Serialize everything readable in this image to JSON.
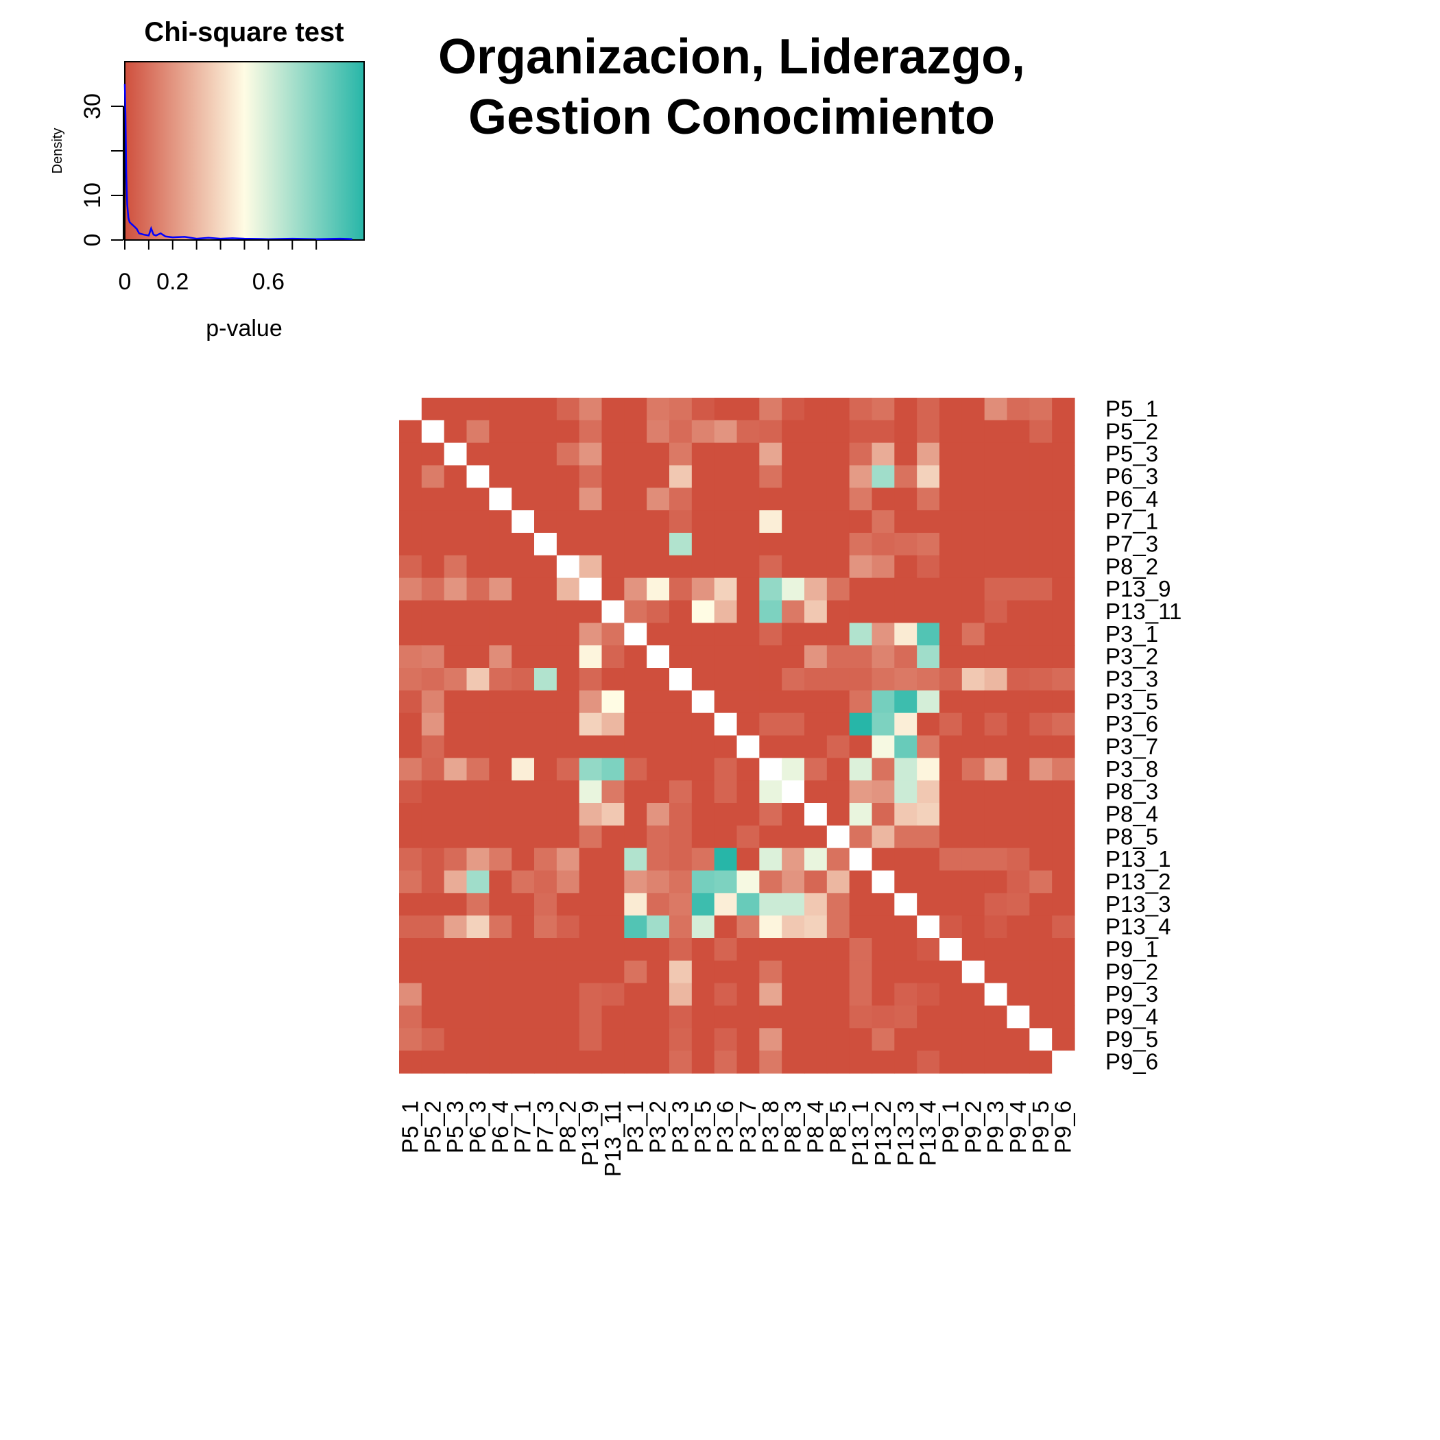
{
  "chart_data": [
    {
      "type": "heatmap",
      "title_lines": [
        "Organizacion, Liderazgo,",
        "Gestion Conocimiento"
      ],
      "row_labels": [
        "P5_1",
        "P5_2",
        "P5_3",
        "P6_3",
        "P6_4",
        "P7_1",
        "P7_3",
        "P8_2",
        "P13_9",
        "P13_11",
        "P3_1",
        "P3_2",
        "P3_3",
        "P3_5",
        "P3_6",
        "P3_7",
        "P3_8",
        "P8_3",
        "P8_4",
        "P8_5",
        "P13_1",
        "P13_2",
        "P13_3",
        "P13_4",
        "P9_1",
        "P9_2",
        "P9_3",
        "P9_4",
        "P9_5",
        "P9_6"
      ],
      "col_labels": [
        "P5_1",
        "P5_2",
        "P5_3",
        "P6_3",
        "P6_4",
        "P7_1",
        "P7_3",
        "P8_2",
        "P13_9",
        "P13_11",
        "P3_1",
        "P3_2",
        "P3_3",
        "P3_5",
        "P3_6",
        "P3_7",
        "P3_8",
        "P8_3",
        "P8_4",
        "P8_5",
        "P13_1",
        "P13_2",
        "P13_3",
        "P13_4",
        "P9_1",
        "P9_2",
        "P9_3",
        "P9_4",
        "P9_5",
        "P9_6"
      ],
      "value_meaning": "p-value (Chi-square test)",
      "color_scale": {
        "low": "#cf4f3d",
        "mid": "#fffce4",
        "high": "#27b6a8",
        "range": [
          0,
          1
        ]
      },
      "notes": "Symmetric matrix with blank diagonal; unlisted pairs have p-value ~0. Rows/cols are ordered as in row_labels/col_labels.",
      "default_value": 0.0,
      "cells": [
        [
          "P5_1",
          "P8_2",
          0.06
        ],
        [
          "P5_1",
          "P13_9",
          0.15
        ],
        [
          "P5_1",
          "P3_2",
          0.12
        ],
        [
          "P5_1",
          "P3_3",
          0.1
        ],
        [
          "P5_1",
          "P3_5",
          0.03
        ],
        [
          "P5_1",
          "P3_8",
          0.13
        ],
        [
          "P5_1",
          "P8_3",
          0.03
        ],
        [
          "P5_1",
          "P13_1",
          0.07
        ],
        [
          "P5_1",
          "P13_2",
          0.1
        ],
        [
          "P5_1",
          "P13_4",
          0.06
        ],
        [
          "P5_1",
          "P9_3",
          0.18
        ],
        [
          "P5_1",
          "P9_4",
          0.08
        ],
        [
          "P5_1",
          "P9_5",
          0.1
        ],
        [
          "P5_2",
          "P6_3",
          0.13
        ],
        [
          "P5_2",
          "P13_9",
          0.09
        ],
        [
          "P5_2",
          "P3_2",
          0.14
        ],
        [
          "P5_2",
          "P3_3",
          0.08
        ],
        [
          "P5_2",
          "P3_5",
          0.15
        ],
        [
          "P5_2",
          "P3_6",
          0.2
        ],
        [
          "P5_2",
          "P3_7",
          0.07
        ],
        [
          "P5_2",
          "P3_8",
          0.06
        ],
        [
          "P5_2",
          "P13_1",
          0.03
        ],
        [
          "P5_2",
          "P13_4",
          0.06
        ],
        [
          "P5_2",
          "P9_5",
          0.06
        ],
        [
          "P5_3",
          "P8_2",
          0.1
        ],
        [
          "P5_3",
          "P13_9",
          0.2
        ],
        [
          "P5_3",
          "P3_3",
          0.12
        ],
        [
          "P5_3",
          "P3_8",
          0.25
        ],
        [
          "P5_3",
          "P13_1",
          0.08
        ],
        [
          "P5_3",
          "P13_2",
          0.27
        ],
        [
          "P5_3",
          "P13_4",
          0.24
        ],
        [
          "P6_3",
          "P13_9",
          0.08
        ],
        [
          "P6_3",
          "P3_3",
          0.35
        ],
        [
          "P6_3",
          "P3_8",
          0.1
        ],
        [
          "P6_3",
          "P13_1",
          0.22
        ],
        [
          "P6_3",
          "P13_2",
          0.72
        ],
        [
          "P6_3",
          "P13_3",
          0.1
        ],
        [
          "P6_3",
          "P13_4",
          0.38
        ],
        [
          "P6_4",
          "P13_9",
          0.2
        ],
        [
          "P6_4",
          "P3_2",
          0.18
        ],
        [
          "P6_4",
          "P3_3",
          0.08
        ],
        [
          "P6_4",
          "P13_1",
          0.12
        ],
        [
          "P6_4",
          "P13_4",
          0.1
        ],
        [
          "P7_1",
          "P3_3",
          0.06
        ],
        [
          "P7_1",
          "P3_8",
          0.46
        ],
        [
          "P7_1",
          "P13_2",
          0.1
        ],
        [
          "P7_3",
          "P3_3",
          0.68
        ],
        [
          "P7_3",
          "P13_1",
          0.1
        ],
        [
          "P7_3",
          "P13_2",
          0.07
        ],
        [
          "P7_3",
          "P13_3",
          0.08
        ],
        [
          "P7_3",
          "P13_4",
          0.1
        ],
        [
          "P8_2",
          "P13_9",
          0.3
        ],
        [
          "P8_2",
          "P3_8",
          0.07
        ],
        [
          "P8_2",
          "P13_1",
          0.2
        ],
        [
          "P8_2",
          "P13_2",
          0.15
        ],
        [
          "P8_2",
          "P13_4",
          0.05
        ],
        [
          "P13_9",
          "P3_1",
          0.2
        ],
        [
          "P13_9",
          "P3_2",
          0.48
        ],
        [
          "P13_9",
          "P3_3",
          0.07
        ],
        [
          "P13_9",
          "P3_5",
          0.2
        ],
        [
          "P13_9",
          "P3_6",
          0.38
        ],
        [
          "P13_9",
          "P3_8",
          0.75
        ],
        [
          "P13_9",
          "P8_3",
          0.55
        ],
        [
          "P13_9",
          "P8_4",
          0.28
        ],
        [
          "P13_9",
          "P8_5",
          0.1
        ],
        [
          "P13_9",
          "P9_3",
          0.06
        ],
        [
          "P13_9",
          "P9_4",
          0.06
        ],
        [
          "P13_9",
          "P9_5",
          0.06
        ],
        [
          "P13_11",
          "P3_1",
          0.1
        ],
        [
          "P13_11",
          "P3_2",
          0.06
        ],
        [
          "P13_11",
          "P3_5",
          0.5
        ],
        [
          "P13_11",
          "P3_6",
          0.3
        ],
        [
          "P13_11",
          "P3_8",
          0.8
        ],
        [
          "P13_11",
          "P8_3",
          0.12
        ],
        [
          "P13_11",
          "P8_4",
          0.35
        ],
        [
          "P13_11",
          "P9_3",
          0.05
        ],
        [
          "P3_1",
          "P3_8",
          0.06
        ],
        [
          "P3_1",
          "P13_1",
          0.68
        ],
        [
          "P3_1",
          "P13_2",
          0.2
        ],
        [
          "P3_1",
          "P13_3",
          0.45
        ],
        [
          "P3_1",
          "P13_4",
          0.9
        ],
        [
          "P3_1",
          "P9_2",
          0.1
        ],
        [
          "P3_2",
          "P8_4",
          0.2
        ],
        [
          "P3_2",
          "P8_5",
          0.08
        ],
        [
          "P3_2",
          "P13_1",
          0.08
        ],
        [
          "P3_2",
          "P13_2",
          0.15
        ],
        [
          "P3_2",
          "P13_3",
          0.08
        ],
        [
          "P3_2",
          "P13_4",
          0.72
        ],
        [
          "P3_3",
          "P8_3",
          0.08
        ],
        [
          "P3_3",
          "P8_4",
          0.06
        ],
        [
          "P3_3",
          "P8_5",
          0.06
        ],
        [
          "P3_3",
          "P13_1",
          0.06
        ],
        [
          "P3_3",
          "P13_2",
          0.1
        ],
        [
          "P3_3",
          "P13_3",
          0.12
        ],
        [
          "P3_3",
          "P13_4",
          0.1
        ],
        [
          "P3_3",
          "P9_1",
          0.06
        ],
        [
          "P3_3",
          "P9_2",
          0.35
        ],
        [
          "P3_3",
          "P9_3",
          0.3
        ],
        [
          "P3_3",
          "P9_4",
          0.05
        ],
        [
          "P3_3",
          "P9_5",
          0.06
        ],
        [
          "P3_3",
          "P9_6",
          0.08
        ],
        [
          "P3_5",
          "P13_1",
          0.1
        ],
        [
          "P3_5",
          "P13_2",
          0.82
        ],
        [
          "P3_5",
          "P13_3",
          0.95
        ],
        [
          "P3_5",
          "P13_4",
          0.6
        ],
        [
          "P3_6",
          "P8_3",
          0.06
        ],
        [
          "P3_6",
          "P13_1",
          1.0
        ],
        [
          "P3_6",
          "P13_2",
          0.8
        ],
        [
          "P3_6",
          "P13_3",
          0.46
        ],
        [
          "P3_6",
          "P9_1",
          0.06
        ],
        [
          "P3_6",
          "P9_3",
          0.05
        ],
        [
          "P3_6",
          "P9_5",
          0.05
        ],
        [
          "P3_6",
          "P9_6",
          0.08
        ],
        [
          "P3_7",
          "P8_5",
          0.06
        ],
        [
          "P3_7",
          "P13_2",
          0.52
        ],
        [
          "P3_7",
          "P13_3",
          0.85
        ],
        [
          "P3_7",
          "P13_4",
          0.12
        ],
        [
          "P3_8",
          "P8_3",
          0.55
        ],
        [
          "P3_8",
          "P8_4",
          0.08
        ],
        [
          "P3_8",
          "P13_1",
          0.58
        ],
        [
          "P3_8",
          "P13_2",
          0.1
        ],
        [
          "P3_8",
          "P13_3",
          0.62
        ],
        [
          "P3_8",
          "P13_4",
          0.48
        ],
        [
          "P3_8",
          "P9_2",
          0.1
        ],
        [
          "P3_8",
          "P9_3",
          0.25
        ],
        [
          "P3_8",
          "P9_5",
          0.2
        ],
        [
          "P3_8",
          "P9_6",
          0.12
        ],
        [
          "P8_3",
          "P13_1",
          0.22
        ],
        [
          "P8_3",
          "P13_2",
          0.2
        ],
        [
          "P8_3",
          "P13_3",
          0.62
        ],
        [
          "P8_3",
          "P13_4",
          0.35
        ],
        [
          "P8_4",
          "P13_1",
          0.55
        ],
        [
          "P8_4",
          "P13_2",
          0.07
        ],
        [
          "P8_4",
          "P13_3",
          0.35
        ],
        [
          "P8_4",
          "P13_4",
          0.38
        ],
        [
          "P8_5",
          "P13_1",
          0.1
        ],
        [
          "P8_5",
          "P13_2",
          0.3
        ],
        [
          "P8_5",
          "P13_3",
          0.1
        ],
        [
          "P8_5",
          "P13_4",
          0.1
        ],
        [
          "P13_1",
          "P9_1",
          0.08
        ],
        [
          "P13_1",
          "P9_2",
          0.08
        ],
        [
          "P13_1",
          "P9_3",
          0.08
        ],
        [
          "P13_1",
          "P9_4",
          0.06
        ],
        [
          "P13_2",
          "P9_4",
          0.05
        ],
        [
          "P13_2",
          "P9_5",
          0.1
        ],
        [
          "P13_3",
          "P9_3",
          0.05
        ],
        [
          "P13_3",
          "P9_4",
          0.06
        ],
        [
          "P13_4",
          "P9_1",
          0.03
        ],
        [
          "P13_4",
          "P9_3",
          0.03
        ],
        [
          "P13_4",
          "P9_6",
          0.05
        ],
        [
          "P5_2",
          "P13_2",
          0.03
        ],
        [
          "P6_3",
          "P9_1",
          0.0
        ],
        [
          "P3_6",
          "P3_8",
          0.06
        ],
        [
          "P3_2",
          "P3_8",
          0.0
        ],
        [
          "P13_11",
          "P13_1",
          0.0
        ],
        [
          "P3_6",
          "P13_4",
          0.0
        ],
        [
          "P3_3",
          "P3_6",
          0.0
        ]
      ]
    },
    {
      "type": "area",
      "title": "Chi-square test",
      "xlabel": "p-value",
      "ylabel": "Density",
      "xlim": [
        0,
        1
      ],
      "ylim": [
        0,
        40
      ],
      "x_ticks": [
        "0",
        "0.2",
        "0.6"
      ],
      "y_ticks": [
        "0",
        "10",
        "30"
      ],
      "x": [
        0,
        0.003,
        0.006,
        0.01,
        0.015,
        0.02,
        0.03,
        0.04,
        0.05,
        0.06,
        0.08,
        0.1,
        0.11,
        0.12,
        0.13,
        0.15,
        0.17,
        0.2,
        0.25,
        0.3,
        0.35,
        0.4,
        0.45,
        0.5,
        0.6,
        0.7,
        0.8,
        0.9,
        0.95
      ],
      "y": [
        35,
        28,
        15,
        8,
        5,
        4,
        3.5,
        3,
        2.5,
        1.5,
        1.2,
        1.0,
        2.6,
        1.2,
        1.0,
        1.5,
        0.8,
        0.6,
        0.7,
        0.3,
        0.5,
        0.3,
        0.4,
        0.3,
        0.2,
        0.3,
        0.2,
        0.3,
        0.2
      ],
      "gradient_colors": [
        "#cf4f3d",
        "#fffce4",
        "#27b6a8"
      ],
      "line_color": "#0000ff"
    }
  ]
}
